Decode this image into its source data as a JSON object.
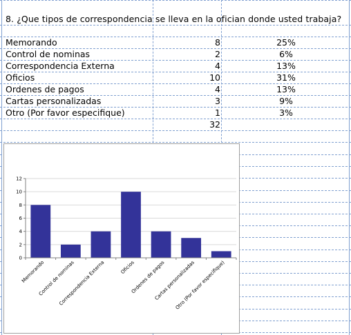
{
  "question": "8. ¿Que tipos de correspondencia se lleva en la ofician donde usted trabaja?",
  "rows": [
    {
      "label": "Memorando",
      "count": "8",
      "percent": "25%"
    },
    {
      "label": "Control de nominas",
      "count": "2",
      "percent": "6%"
    },
    {
      "label": "Correspondencia Externa",
      "count": "4",
      "percent": "13%"
    },
    {
      "label": "Oficios",
      "count": "10",
      "percent": "31%"
    },
    {
      "label": "Ordenes de pagos",
      "count": "4",
      "percent": "13%"
    },
    {
      "label": "Cartas personalizadas",
      "count": "3",
      "percent": "9%"
    },
    {
      "label": "Otro (Por favor especifique)",
      "count": "1",
      "percent": "3%"
    }
  ],
  "total": "32",
  "chart_data": {
    "type": "bar",
    "categories": [
      "Memorando",
      "Control de nominas",
      "Correspondencia Externa",
      "Oficios",
      "Ordenes de pagos",
      "Cartas personalizadas",
      "Otro (Por favor especifique)"
    ],
    "values": [
      8,
      2,
      4,
      10,
      4,
      3,
      1
    ],
    "ylim": [
      0,
      12
    ],
    "yticks": [
      0,
      2,
      4,
      6,
      8,
      10,
      12
    ],
    "bar_color": "#333399",
    "grid": true,
    "legend": "none"
  }
}
